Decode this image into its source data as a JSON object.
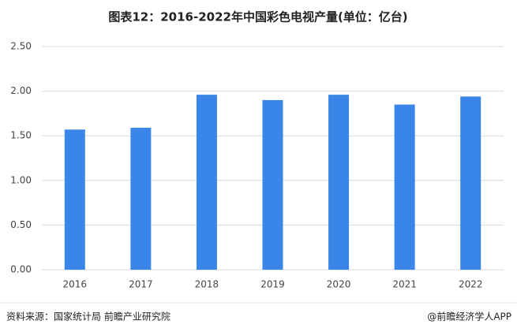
{
  "chart_data": {
    "type": "bar",
    "title": "图表12：2016-2022年中国彩色电视产量(单位：亿台)",
    "categories": [
      "2016",
      "2017",
      "2018",
      "2019",
      "2020",
      "2021",
      "2022"
    ],
    "values": [
      1.57,
      1.59,
      1.96,
      1.9,
      1.96,
      1.85,
      1.94
    ],
    "color": "#3a86e8",
    "ylim": [
      0,
      2.5
    ],
    "yticks": [
      {
        "value": 0,
        "label": "0.00"
      },
      {
        "value": 0.5,
        "label": "0.50"
      },
      {
        "value": 1,
        "label": "1.00"
      },
      {
        "value": 1.5,
        "label": "1.50"
      },
      {
        "value": 2,
        "label": "2.00"
      },
      {
        "value": 2.5,
        "label": "2.50"
      }
    ],
    "grid": true,
    "source": "资料来源：国家统计局 前瞻产业研究院",
    "credit": "@前瞻经济学人APP"
  }
}
